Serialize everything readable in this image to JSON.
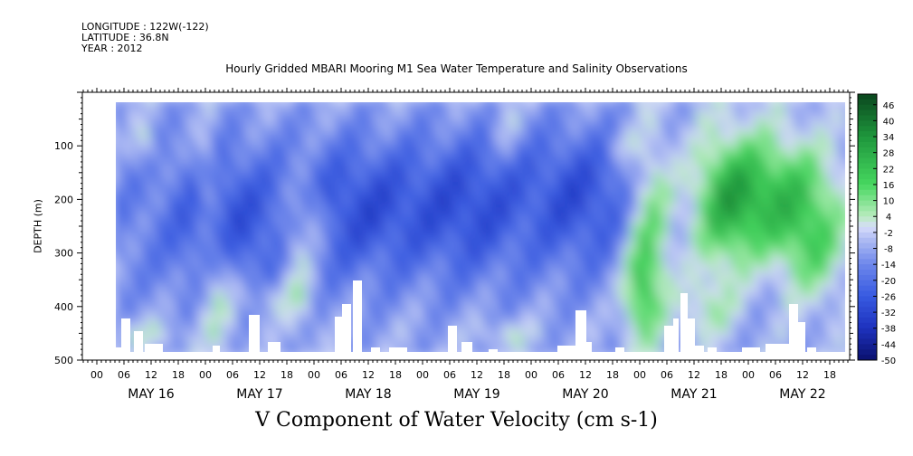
{
  "header": {
    "longitude": "LONGITUDE : 122W(-122)",
    "latitude": "LATITUDE : 36.8N",
    "year": "YEAR : 2012"
  },
  "chart_data": {
    "type": "heatmap",
    "title": "Hourly Gridded MBARI Mooring M1 Sea Water Temperature and Salinity Observations",
    "xlabel": "V Component of Water Velocity (cm s-1)",
    "ylabel": "DEPTH (m)",
    "ylim": [
      500,
      0
    ],
    "yticks": [
      100,
      200,
      300,
      400,
      500
    ],
    "hour_ticks": [
      "00",
      "06",
      "12",
      "18",
      "00",
      "06",
      "12",
      "18",
      "00",
      "06",
      "12",
      "18",
      "00",
      "06",
      "12",
      "18",
      "00",
      "06",
      "12",
      "18",
      "00",
      "06",
      "12",
      "18",
      "00",
      "06",
      "12",
      "18"
    ],
    "day_labels": [
      "MAY 16",
      "MAY 17",
      "MAY 18",
      "MAY 19",
      "MAY 20",
      "MAY 21",
      "MAY 22"
    ],
    "colorbar": {
      "labels": [
        "46",
        "40",
        "34",
        "28",
        "22",
        "16",
        "10",
        "4",
        "-2",
        "-8",
        "-14",
        "-20",
        "-26",
        "-32",
        "-38",
        "-44",
        "-50"
      ],
      "range": [
        -50,
        50
      ]
    },
    "colors": {
      "negative": "#3e5fe0",
      "near_zero": "#c9d2f7",
      "positive": "#3fd45a",
      "missing": "#ffffff"
    }
  }
}
